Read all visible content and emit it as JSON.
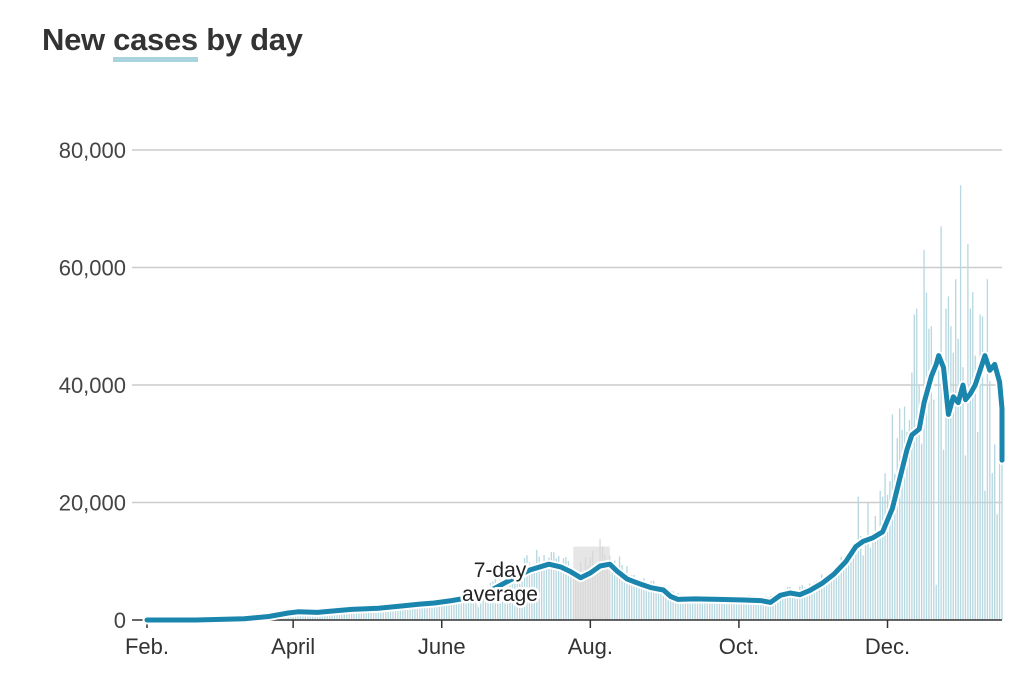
{
  "title": {
    "prefix": "New",
    "highlight": "cases",
    "suffix": "by day"
  },
  "colors": {
    "bars": "#b7d8e0",
    "bars_highlight": "#e6e6e6",
    "line": "#1a85ad",
    "grid": "#cccccc",
    "axis": "#333333"
  },
  "chart_data": {
    "type": "bar",
    "title": "New cases by day",
    "xlabel": "",
    "ylabel": "",
    "ylim": [
      0,
      80000
    ],
    "yticks": [
      0,
      20000,
      40000,
      60000,
      80000
    ],
    "ytick_labels": [
      "0",
      "20,000",
      "40,000",
      "60,000",
      "80,000"
    ],
    "xlim_days": [
      0,
      351
    ],
    "xtick_days": [
      0,
      60,
      121,
      182,
      243,
      304
    ],
    "xtick_labels": [
      "Feb.",
      "April",
      "June",
      "Aug.",
      "Oct.",
      "Dec."
    ],
    "highlight_range_days": [
      175,
      190
    ],
    "avg_label_lines": [
      "7-day",
      "average"
    ],
    "series": [
      {
        "name": "New cases",
        "type": "bar",
        "day_stride": 1,
        "anchors": [
          [
            0,
            0
          ],
          [
            20,
            0
          ],
          [
            35,
            100
          ],
          [
            45,
            500
          ],
          [
            58,
            1200
          ],
          [
            65,
            1700
          ],
          [
            75,
            1500
          ],
          [
            85,
            2100
          ],
          [
            100,
            2300
          ],
          [
            110,
            2500
          ],
          [
            120,
            3200
          ],
          [
            130,
            3500
          ],
          [
            140,
            5500
          ],
          [
            150,
            8000
          ],
          [
            158,
            10000
          ],
          [
            163,
            11000
          ],
          [
            168,
            10500
          ],
          [
            172,
            9500
          ],
          [
            176,
            7800
          ],
          [
            181,
            9500
          ],
          [
            186,
            12000
          ],
          [
            190,
            10500
          ],
          [
            198,
            8000
          ],
          [
            205,
            6000
          ],
          [
            210,
            5500
          ],
          [
            215,
            4200
          ],
          [
            225,
            3700
          ],
          [
            235,
            3600
          ],
          [
            245,
            3700
          ],
          [
            255,
            3400
          ],
          [
            260,
            4500
          ],
          [
            265,
            5000
          ],
          [
            270,
            5800
          ],
          [
            280,
            7500
          ],
          [
            285,
            9500
          ],
          [
            290,
            12000
          ],
          [
            295,
            14000
          ],
          [
            300,
            16000
          ],
          [
            305,
            22000
          ],
          [
            310,
            33000
          ],
          [
            315,
            42000
          ],
          [
            318,
            48000
          ],
          [
            320,
            50000
          ],
          [
            322,
            36000
          ],
          [
            325,
            47000
          ],
          [
            330,
            50000
          ],
          [
            335,
            37000
          ],
          [
            338,
            48000
          ],
          [
            340,
            50000
          ],
          [
            343,
            46000
          ],
          [
            346,
            40000
          ],
          [
            348,
            33000
          ],
          [
            350,
            28000
          ],
          [
            351,
            28000
          ]
        ],
        "spikes": [
          [
            292,
            21000
          ],
          [
            294,
            11000
          ],
          [
            296,
            20000
          ],
          [
            303,
            25000
          ],
          [
            306,
            35000
          ],
          [
            309,
            36000
          ],
          [
            312,
            32000
          ],
          [
            313,
            34000
          ],
          [
            315,
            52000
          ],
          [
            316,
            53000
          ],
          [
            318,
            30000
          ],
          [
            319,
            63000
          ],
          [
            322,
            50000
          ],
          [
            324,
            6000
          ],
          [
            326,
            67000
          ],
          [
            327,
            29000
          ],
          [
            328,
            33000
          ],
          [
            330,
            50000
          ],
          [
            332,
            58000
          ],
          [
            334,
            74000
          ],
          [
            336,
            28000
          ],
          [
            337,
            64000
          ],
          [
            338,
            53000
          ],
          [
            340,
            45000
          ],
          [
            341,
            32000
          ],
          [
            342,
            52000
          ],
          [
            344,
            22000
          ],
          [
            345,
            58000
          ],
          [
            347,
            25000
          ],
          [
            349,
            18000
          ],
          [
            350,
            30000
          ],
          [
            328,
            53000
          ],
          [
            301,
            22000
          ]
        ]
      },
      {
        "name": "7-day average",
        "type": "line",
        "points": [
          [
            0,
            0
          ],
          [
            20,
            0
          ],
          [
            40,
            200
          ],
          [
            50,
            600
          ],
          [
            58,
            1200
          ],
          [
            62,
            1400
          ],
          [
            70,
            1300
          ],
          [
            78,
            1600
          ],
          [
            84,
            1800
          ],
          [
            95,
            2000
          ],
          [
            105,
            2400
          ],
          [
            112,
            2700
          ],
          [
            118,
            2900
          ],
          [
            125,
            3300
          ],
          [
            132,
            3800
          ],
          [
            140,
            4800
          ],
          [
            150,
            7000
          ],
          [
            157,
            8500
          ],
          [
            165,
            9500
          ],
          [
            170,
            9000
          ],
          [
            174,
            8200
          ],
          [
            178,
            7200
          ],
          [
            182,
            8000
          ],
          [
            186,
            9200
          ],
          [
            190,
            9500
          ],
          [
            193,
            8300
          ],
          [
            197,
            7000
          ],
          [
            202,
            6200
          ],
          [
            207,
            5500
          ],
          [
            212,
            5100
          ],
          [
            215,
            4000
          ],
          [
            218,
            3500
          ],
          [
            225,
            3600
          ],
          [
            235,
            3500
          ],
          [
            245,
            3400
          ],
          [
            252,
            3300
          ],
          [
            256,
            3000
          ],
          [
            260,
            4200
          ],
          [
            264,
            4600
          ],
          [
            268,
            4300
          ],
          [
            272,
            5000
          ],
          [
            277,
            6200
          ],
          [
            282,
            7800
          ],
          [
            287,
            10000
          ],
          [
            291,
            12500
          ],
          [
            294,
            13400
          ],
          [
            298,
            14000
          ],
          [
            302,
            15000
          ],
          [
            306,
            19000
          ],
          [
            309,
            24000
          ],
          [
            312,
            29000
          ],
          [
            314,
            31500
          ],
          [
            317,
            32500
          ],
          [
            319,
            37000
          ],
          [
            322,
            41500
          ],
          [
            324,
            43500
          ],
          [
            325,
            45000
          ],
          [
            327,
            43000
          ],
          [
            329,
            35000
          ],
          [
            331,
            38000
          ],
          [
            333,
            37000
          ],
          [
            335,
            40000
          ],
          [
            336,
            37500
          ],
          [
            338,
            38500
          ],
          [
            340,
            40000
          ],
          [
            342,
            42500
          ],
          [
            344,
            45000
          ],
          [
            346,
            42500
          ],
          [
            348,
            43500
          ],
          [
            350,
            40500
          ],
          [
            352,
            36000
          ],
          [
            354,
            36000
          ],
          [
            356,
            33000
          ],
          [
            358,
            29000
          ],
          [
            360,
            27200
          ],
          [
            361,
            28300
          ]
        ]
      }
    ]
  }
}
